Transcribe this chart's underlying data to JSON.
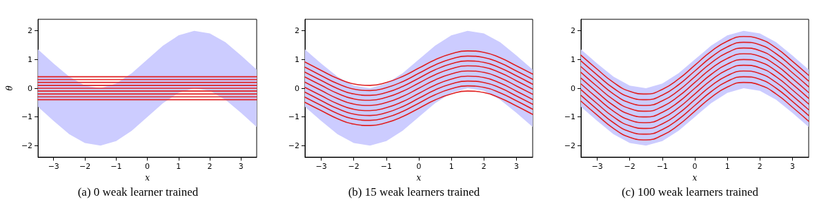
{
  "chart_data": [
    {
      "type": "line",
      "title": "(a) 0 weak learner trained",
      "xlabel": "x",
      "ylabel": "θ",
      "xlim": [
        -3.5,
        3.5
      ],
      "xticks": [
        -3,
        -2,
        -1,
        0,
        1,
        2,
        3
      ],
      "ylim": [
        -2.4,
        2.4
      ],
      "yticks": [
        -2,
        -1,
        0,
        1,
        2
      ],
      "x": [
        -3.5,
        -3,
        -2.5,
        -2,
        -1.5,
        -1,
        -0.5,
        0,
        0.5,
        1,
        1.5,
        2,
        2.5,
        3,
        3.5
      ],
      "series": [
        {
          "color": "#e02020",
          "values": [
            0.4,
            0.4,
            0.4,
            0.4,
            0.4,
            0.4,
            0.4,
            0.4,
            0.4,
            0.4,
            0.4,
            0.4,
            0.4,
            0.4,
            0.4
          ]
        },
        {
          "color": "#e02020",
          "values": [
            0.3,
            0.3,
            0.3,
            0.3,
            0.3,
            0.3,
            0.3,
            0.3,
            0.3,
            0.3,
            0.3,
            0.3,
            0.3,
            0.3,
            0.3
          ]
        },
        {
          "color": "#e02020",
          "values": [
            0.2,
            0.2,
            0.2,
            0.2,
            0.2,
            0.2,
            0.2,
            0.2,
            0.2,
            0.2,
            0.2,
            0.2,
            0.2,
            0.2,
            0.2
          ]
        },
        {
          "color": "#e02020",
          "values": [
            0.1,
            0.1,
            0.1,
            0.1,
            0.1,
            0.1,
            0.1,
            0.1,
            0.1,
            0.1,
            0.1,
            0.1,
            0.1,
            0.1,
            0.1
          ]
        },
        {
          "color": "#e02020",
          "values": [
            0,
            0,
            0,
            0,
            0,
            0,
            0,
            0,
            0,
            0,
            0,
            0,
            0,
            0,
            0
          ],
          "upper": [
            1.35,
            0.86,
            0.4,
            0.09,
            0,
            0.16,
            0.52,
            1,
            1.48,
            1.84,
            2,
            1.91,
            1.6,
            1.14,
            0.65
          ],
          "lower": [
            -0.65,
            -1.14,
            -1.6,
            -1.91,
            -2,
            -1.84,
            -1.48,
            -1,
            -0.52,
            -0.16,
            0,
            -0.09,
            -0.4,
            -0.86,
            -1.35
          ]
        },
        {
          "color": "#e02020",
          "values": [
            -0.1,
            -0.1,
            -0.1,
            -0.1,
            -0.1,
            -0.1,
            -0.1,
            -0.1,
            -0.1,
            -0.1,
            -0.1,
            -0.1,
            -0.1,
            -0.1,
            -0.1
          ]
        },
        {
          "color": "#e02020",
          "values": [
            -0.2,
            -0.2,
            -0.2,
            -0.2,
            -0.2,
            -0.2,
            -0.2,
            -0.2,
            -0.2,
            -0.2,
            -0.2,
            -0.2,
            -0.2,
            -0.2,
            -0.2
          ]
        },
        {
          "color": "#e02020",
          "values": [
            -0.3,
            -0.3,
            -0.3,
            -0.3,
            -0.3,
            -0.3,
            -0.3,
            -0.3,
            -0.3,
            -0.3,
            -0.3,
            -0.3,
            -0.3,
            -0.3,
            -0.3
          ]
        },
        {
          "color": "#e02020",
          "values": [
            -0.4,
            -0.4,
            -0.4,
            -0.4,
            -0.4,
            -0.4,
            -0.4,
            -0.4,
            -0.4,
            -0.4,
            -0.4,
            -0.4,
            -0.4,
            -0.4,
            -0.4
          ]
        }
      ]
    },
    {
      "type": "line",
      "title": "(b) 15 weak learners trained",
      "xlabel": "x",
      "xlim": [
        -3.5,
        3.5
      ],
      "xticks": [
        -3,
        -2,
        -1,
        0,
        1,
        2,
        3
      ],
      "ylim": [
        -2.4,
        2.4
      ],
      "yticks": [
        -2,
        -1,
        0,
        1,
        2
      ],
      "x": [
        -3.5,
        -3,
        -2.5,
        -2,
        -1.5,
        -1,
        -0.5,
        0,
        0.5,
        1,
        1.5,
        2,
        2.5,
        3,
        3.5
      ],
      "series": [
        {
          "color": "#e02020",
          "values": [
            0.91,
            0.62,
            0.34,
            0.15,
            0.1,
            0.2,
            0.41,
            0.7,
            0.99,
            1.2,
            1.3,
            1.25,
            1.06,
            0.78,
            0.49
          ]
        },
        {
          "color": "#e02020",
          "values": [
            0.73,
            0.44,
            0.16,
            -0.03,
            -0.08,
            0.02,
            0.23,
            0.52,
            0.81,
            1.02,
            1.12,
            1.07,
            0.88,
            0.6,
            0.31
          ]
        },
        {
          "color": "#e02020",
          "values": [
            0.56,
            0.27,
            -0.01,
            -0.2,
            -0.25,
            -0.15,
            0.06,
            0.35,
            0.64,
            0.85,
            0.95,
            0.9,
            0.71,
            0.43,
            0.14
          ]
        },
        {
          "color": "#e02020",
          "values": [
            0.39,
            0.1,
            -0.18,
            -0.37,
            -0.42,
            -0.32,
            -0.11,
            0.18,
            0.47,
            0.68,
            0.78,
            0.73,
            0.54,
            0.26,
            -0.03
          ]
        },
        {
          "color": "#e02020",
          "values": [
            0.21,
            -0.08,
            -0.36,
            -0.55,
            -0.6,
            -0.5,
            -0.29,
            0,
            0.29,
            0.5,
            0.6,
            0.55,
            0.36,
            0.08,
            -0.21
          ],
          "upper": [
            1.35,
            0.86,
            0.4,
            0.09,
            0,
            0.16,
            0.52,
            1,
            1.48,
            1.84,
            2,
            1.91,
            1.6,
            1.14,
            0.65
          ],
          "lower": [
            -0.65,
            -1.14,
            -1.6,
            -1.91,
            -2,
            -1.84,
            -1.48,
            -1,
            -0.52,
            -0.16,
            0,
            -0.09,
            -0.4,
            -0.86,
            -1.35
          ]
        },
        {
          "color": "#e02020",
          "values": [
            0.03,
            -0.26,
            -0.54,
            -0.73,
            -0.78,
            -0.68,
            -0.47,
            -0.18,
            0.11,
            0.32,
            0.42,
            0.37,
            0.18,
            -0.1,
            -0.39
          ]
        },
        {
          "color": "#e02020",
          "values": [
            -0.14,
            -0.43,
            -0.71,
            -0.9,
            -0.95,
            -0.85,
            -0.64,
            -0.35,
            -0.06,
            0.15,
            0.25,
            0.2,
            0.01,
            -0.27,
            -0.56
          ]
        },
        {
          "color": "#e02020",
          "values": [
            -0.31,
            -0.6,
            -0.88,
            -1.07,
            -1.12,
            -1.02,
            -0.81,
            -0.52,
            -0.23,
            -0.02,
            0.08,
            0.03,
            -0.16,
            -0.44,
            -0.73
          ]
        },
        {
          "color": "#e02020",
          "values": [
            -0.49,
            -0.78,
            -1.06,
            -1.25,
            -1.3,
            -1.2,
            -0.99,
            -0.7,
            -0.41,
            -0.2,
            -0.1,
            -0.15,
            -0.34,
            -0.62,
            -0.91
          ]
        }
      ]
    },
    {
      "type": "line",
      "title": "(c) 100 weak learners trained",
      "xlabel": "x",
      "xlim": [
        -3.5,
        3.5
      ],
      "xticks": [
        -3,
        -2,
        -1,
        0,
        1,
        2,
        3
      ],
      "ylim": [
        -2.4,
        2.4
      ],
      "yticks": [
        -2,
        -1,
        0,
        1,
        2
      ],
      "x": [
        -3.5,
        -3,
        -2.5,
        -2,
        -1.5,
        -1,
        -0.5,
        0,
        0.5,
        1,
        1.5,
        2,
        2.5,
        3,
        3.5
      ],
      "series": [
        {
          "color": "#e02020",
          "values": [
            1.15,
            0.66,
            0.2,
            -0.11,
            -0.2,
            -0.04,
            0.32,
            0.8,
            1.28,
            1.64,
            1.8,
            1.71,
            1.4,
            0.94,
            0.45
          ]
        },
        {
          "color": "#e02020",
          "values": [
            0.95,
            0.46,
            0,
            -0.31,
            -0.4,
            -0.24,
            0.12,
            0.6,
            1.08,
            1.44,
            1.6,
            1.51,
            1.2,
            0.74,
            0.25
          ]
        },
        {
          "color": "#e02020",
          "values": [
            0.75,
            0.26,
            -0.2,
            -0.51,
            -0.6,
            -0.44,
            -0.08,
            0.4,
            0.88,
            1.24,
            1.4,
            1.31,
            1.0,
            0.54,
            0.05
          ]
        },
        {
          "color": "#e02020",
          "values": [
            0.55,
            0.06,
            -0.4,
            -0.71,
            -0.8,
            -0.64,
            -0.28,
            0.2,
            0.68,
            1.04,
            1.2,
            1.11,
            0.8,
            0.34,
            -0.15
          ]
        },
        {
          "color": "#e02020",
          "values": [
            0.35,
            -0.14,
            -0.6,
            -0.91,
            -1.0,
            -0.84,
            -0.48,
            0,
            0.48,
            0.84,
            1.0,
            0.91,
            0.6,
            0.14,
            -0.35
          ],
          "upper": [
            1.35,
            0.86,
            0.4,
            0.09,
            0,
            0.16,
            0.52,
            1,
            1.48,
            1.84,
            2,
            1.91,
            1.6,
            1.14,
            0.65
          ],
          "lower": [
            -0.65,
            -1.14,
            -1.6,
            -1.91,
            -2,
            -1.84,
            -1.48,
            -1,
            -0.52,
            -0.16,
            0,
            -0.09,
            -0.4,
            -0.86,
            -1.35
          ]
        },
        {
          "color": "#e02020",
          "values": [
            0.15,
            -0.34,
            -0.8,
            -1.11,
            -1.2,
            -1.04,
            -0.68,
            -0.2,
            0.28,
            0.64,
            0.8,
            0.71,
            0.4,
            -0.06,
            -0.55
          ]
        },
        {
          "color": "#e02020",
          "values": [
            -0.05,
            -0.54,
            -1.0,
            -1.31,
            -1.4,
            -1.24,
            -0.88,
            -0.4,
            0.08,
            0.44,
            0.6,
            0.51,
            0.2,
            -0.26,
            -0.75
          ]
        },
        {
          "color": "#e02020",
          "values": [
            -0.25,
            -0.74,
            -1.2,
            -1.51,
            -1.6,
            -1.44,
            -1.08,
            -0.6,
            -0.12,
            0.24,
            0.4,
            0.31,
            0.0,
            -0.46,
            -0.95
          ]
        },
        {
          "color": "#e02020",
          "values": [
            -0.45,
            -0.94,
            -1.4,
            -1.71,
            -1.8,
            -1.64,
            -1.28,
            -0.8,
            -0.32,
            0.04,
            0.2,
            0.11,
            -0.2,
            -0.66,
            -1.15
          ]
        }
      ]
    }
  ]
}
